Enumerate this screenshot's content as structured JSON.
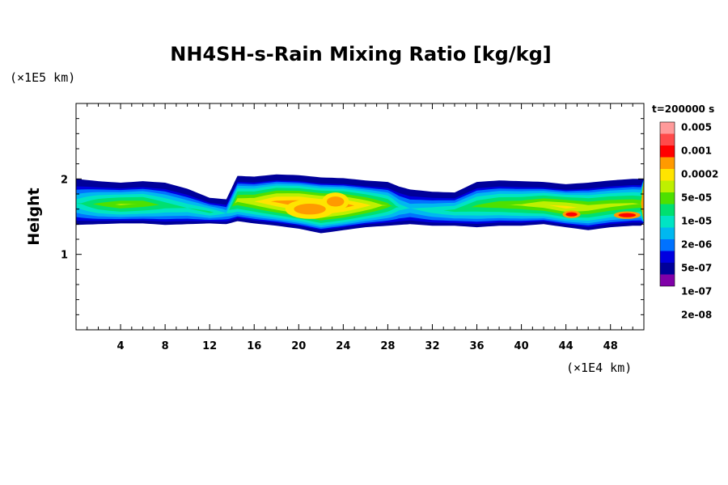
{
  "chart_data": {
    "type": "heatmap",
    "title": "NH4SH-s-Rain Mixing Ratio [kg/kg]",
    "ylabel": "Height",
    "x_unit_label": "(×1E4 km)",
    "y_unit_label": "(×1E5 km)",
    "time_label": "t=200000 s",
    "xlim": [
      0,
      51
    ],
    "ylim": [
      0,
      3
    ],
    "x_ticks": [
      4,
      8,
      12,
      16,
      20,
      24,
      28,
      32,
      36,
      40,
      44,
      48
    ],
    "x_tick_labels": [
      "4",
      "8",
      "12",
      "16",
      "20",
      "24",
      "28",
      "32",
      "36",
      "40",
      "44",
      "48"
    ],
    "y_ticks": [
      1,
      2
    ],
    "y_tick_labels": [
      "1",
      "2"
    ],
    "colorbar": {
      "labels": [
        "0.005",
        "0.001",
        "0.0002",
        "5e-05",
        "1e-05",
        "2e-06",
        "5e-07",
        "1e-07",
        "2e-08"
      ],
      "colors_top_to_bottom": [
        "#ff9a9a",
        "#ff4a4a",
        "#ff0000",
        "#ff9a00",
        "#ffe400",
        "#bef000",
        "#4ee000",
        "#00e070",
        "#00e4c4",
        "#00b8f0",
        "#0072ff",
        "#0000e0",
        "#00009a",
        "#8000a8"
      ]
    },
    "layer": {
      "columns_x": [
        0,
        2,
        4,
        6,
        8,
        10,
        12,
        13.5,
        14.5,
        16,
        18,
        20,
        22,
        24,
        26,
        28,
        29,
        30,
        32,
        34,
        36,
        38,
        40,
        42,
        44,
        46,
        48,
        50,
        51
      ],
      "top": [
        2.0,
        1.97,
        1.95,
        1.97,
        1.95,
        1.87,
        1.75,
        1.73,
        2.04,
        2.03,
        2.06,
        2.05,
        2.02,
        2.01,
        1.98,
        1.96,
        1.9,
        1.86,
        1.83,
        1.82,
        1.96,
        1.98,
        1.97,
        1.96,
        1.93,
        1.95,
        1.98,
        2.0,
        2.0
      ],
      "bottom": [
        1.43,
        1.44,
        1.45,
        1.45,
        1.43,
        1.44,
        1.45,
        1.44,
        1.48,
        1.45,
        1.42,
        1.38,
        1.32,
        1.36,
        1.4,
        1.42,
        1.43,
        1.44,
        1.42,
        1.42,
        1.4,
        1.42,
        1.42,
        1.44,
        1.4,
        1.36,
        1.4,
        1.42,
        1.42
      ],
      "core_level": [
        0.45,
        0.7,
        0.85,
        0.8,
        0.6,
        0.5,
        0.55,
        0.35,
        0.9,
        1.0,
        1.3,
        1.45,
        1.5,
        1.4,
        1.1,
        0.75,
        0.45,
        0.35,
        0.45,
        0.55,
        0.7,
        0.8,
        0.85,
        1.0,
        1.1,
        0.95,
        0.9,
        0.85,
        0.8
      ]
    },
    "hot_spots": [
      {
        "x": 21.0,
        "y": 1.6,
        "rx": 2.2,
        "ry": 0.13,
        "level": 3
      },
      {
        "x": 23.3,
        "y": 1.7,
        "rx": 1.2,
        "ry": 0.12,
        "level": 3
      },
      {
        "x": 44.5,
        "y": 1.53,
        "rx": 0.8,
        "ry": 0.05,
        "level": 4
      },
      {
        "x": 49.5,
        "y": 1.52,
        "rx": 1.2,
        "ry": 0.05,
        "level": 4
      }
    ]
  }
}
